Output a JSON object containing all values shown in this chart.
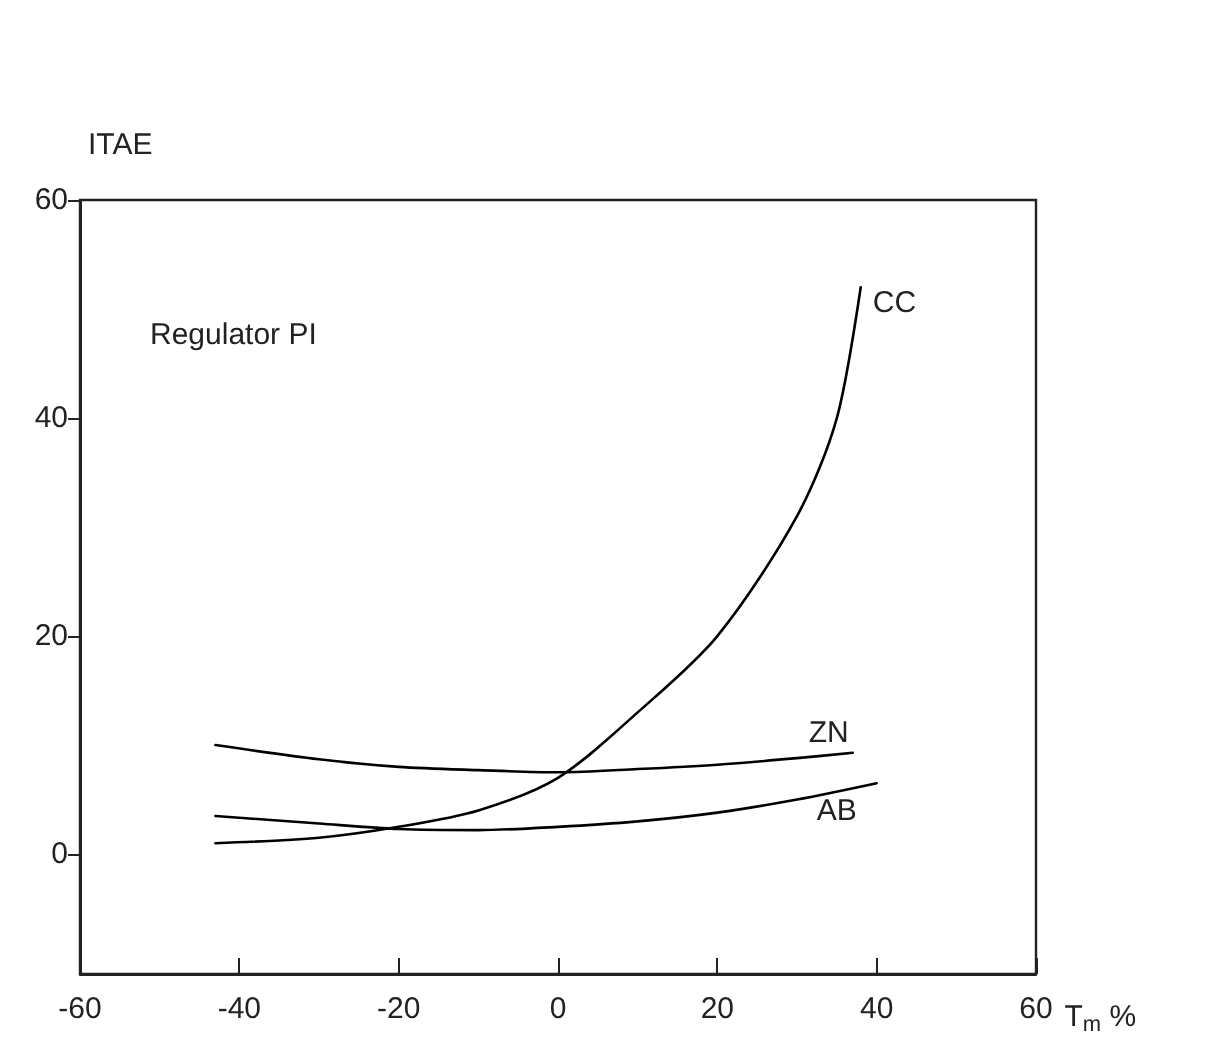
{
  "chart_data": {
    "type": "line",
    "xlabel": "T$_{m}$ %",
    "ylabel": "ITAE",
    "annotations": [
      "Regulator PI"
    ],
    "xlim": [
      -60,
      60
    ],
    "xticks": [
      -60,
      -40,
      -20,
      0,
      20,
      40,
      60
    ],
    "ylim": [
      -11,
      60
    ],
    "yticks": [
      0,
      20,
      40,
      60
    ],
    "grid": false,
    "legend": false,
    "marker": "none",
    "line_style": "solid",
    "series": [
      {
        "name": "CC",
        "color": "#000000",
        "x": [
          -43,
          -30,
          -20,
          -10,
          0,
          10,
          20,
          30,
          35,
          38
        ],
        "values": [
          1,
          1.5,
          2.5,
          4,
          7,
          13,
          20,
          31,
          40,
          52
        ]
      },
      {
        "name": "ZN",
        "color": "#000000",
        "x": [
          -43,
          -30,
          -20,
          -10,
          0,
          10,
          20,
          30,
          37
        ],
        "values": [
          10,
          8.7,
          8,
          7.7,
          7.5,
          7.8,
          8.2,
          8.8,
          9.3
        ]
      },
      {
        "name": "AB",
        "color": "#000000",
        "x": [
          -43,
          -30,
          -20,
          -10,
          0,
          10,
          20,
          30,
          40
        ],
        "values": [
          3.5,
          2.8,
          2.3,
          2.2,
          2.5,
          3,
          3.8,
          5,
          6.5
        ]
      }
    ]
  }
}
